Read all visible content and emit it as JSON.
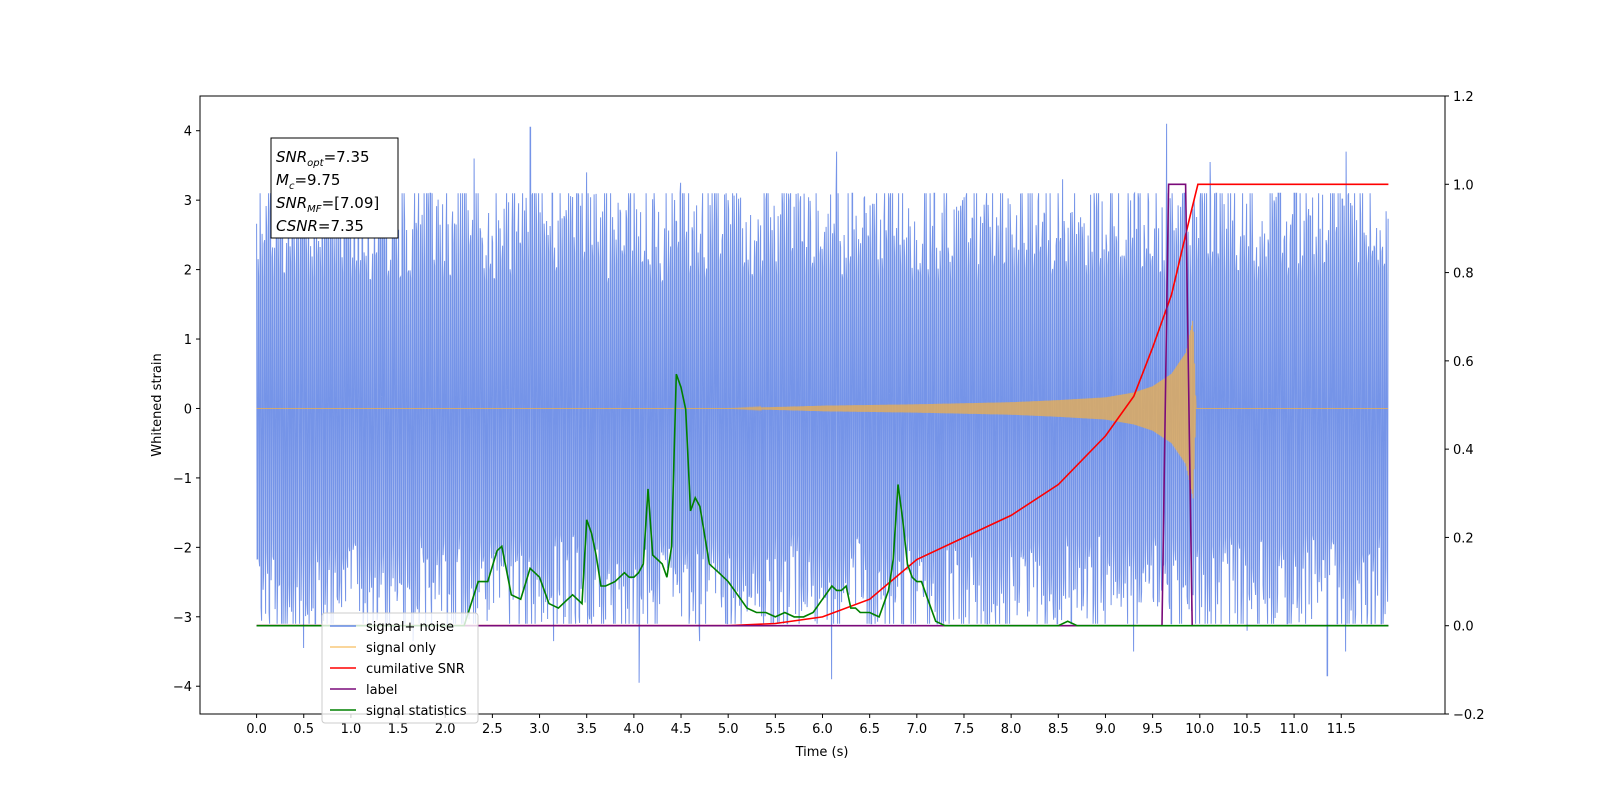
{
  "chart_data": {
    "type": "line",
    "title": "",
    "xlabel": "Time (s)",
    "ylabel": "Whitened strain",
    "xlim": [
      -0.6,
      12.6
    ],
    "ylim": [
      -4.4,
      4.5
    ],
    "ylim_right": [
      -0.2,
      1.2
    ],
    "x_ticks": [
      0.0,
      0.5,
      1.0,
      1.5,
      2.0,
      2.5,
      3.0,
      3.5,
      4.0,
      4.5,
      5.0,
      5.5,
      6.0,
      6.5,
      7.0,
      7.5,
      8.0,
      8.5,
      9.0,
      9.5,
      10.0,
      10.5,
      11.0,
      11.5
    ],
    "x_tick_labels": [
      "0.0",
      "0.5",
      "1.0",
      "1.5",
      "2.0",
      "2.5",
      "3.0",
      "3.5",
      "4.0",
      "4.5",
      "5.0",
      "5.5",
      "6.0",
      "6.5",
      "7.0",
      "7.5",
      "8.0",
      "8.5",
      "9.0",
      "9.5",
      "10.0",
      "10.5",
      "11.0",
      "11.5"
    ],
    "y_ticks": [
      -4,
      -3,
      -2,
      -1,
      0,
      1,
      2,
      3,
      4
    ],
    "y_tick_labels": [
      "−4",
      "−3",
      "−2",
      "−1",
      "0",
      "1",
      "2",
      "3",
      "4"
    ],
    "y_right_ticks": [
      -0.2,
      0.0,
      0.2,
      0.4,
      0.6,
      0.8,
      1.0,
      1.2
    ],
    "y_right_tick_labels": [
      "−0.2",
      "0.0",
      "0.2",
      "0.4",
      "0.6",
      "0.8",
      "1.0",
      "1.2"
    ],
    "grid": false,
    "legend_position": "lower-left",
    "noise": {
      "x_range": [
        0.0,
        12.0
      ],
      "typical_amplitude": 1.9,
      "peak_spikes": [
        {
          "x": 0.25,
          "y": 2.5
        },
        {
          "x": 0.5,
          "y": -3.45
        },
        {
          "x": 1.45,
          "y": 3.55
        },
        {
          "x": 1.65,
          "y": -3.35
        },
        {
          "x": 2.3,
          "y": 3.6
        },
        {
          "x": 2.9,
          "y": 4.05
        },
        {
          "x": 3.15,
          "y": -3.35
        },
        {
          "x": 3.5,
          "y": 3.4
        },
        {
          "x": 4.05,
          "y": -3.95
        },
        {
          "x": 4.5,
          "y": 3.25
        },
        {
          "x": 4.7,
          "y": -3.35
        },
        {
          "x": 6.1,
          "y": -3.9
        },
        {
          "x": 6.15,
          "y": 3.7
        },
        {
          "x": 8.55,
          "y": 3.3
        },
        {
          "x": 9.3,
          "y": -3.5
        },
        {
          "x": 9.65,
          "y": 4.1
        },
        {
          "x": 10.1,
          "y": 3.55
        },
        {
          "x": 10.5,
          "y": -3.2
        },
        {
          "x": 11.35,
          "y": -3.85
        },
        {
          "x": 11.55,
          "y": 3.7
        },
        {
          "x": 11.55,
          "y": -3.5
        }
      ]
    },
    "signal": {
      "x_range": [
        0.0,
        12.0
      ],
      "envelope": [
        {
          "x": 0.0,
          "y": 0.0
        },
        {
          "x": 5.0,
          "y": 0.0
        },
        {
          "x": 6.0,
          "y": 0.04
        },
        {
          "x": 7.0,
          "y": 0.06
        },
        {
          "x": 8.0,
          "y": 0.09
        },
        {
          "x": 8.5,
          "y": 0.12
        },
        {
          "x": 9.0,
          "y": 0.16
        },
        {
          "x": 9.3,
          "y": 0.23
        },
        {
          "x": 9.5,
          "y": 0.32
        },
        {
          "x": 9.7,
          "y": 0.5
        },
        {
          "x": 9.85,
          "y": 0.8
        },
        {
          "x": 9.93,
          "y": 1.3
        },
        {
          "x": 9.96,
          "y": 0.0
        },
        {
          "x": 12.0,
          "y": 0.0
        }
      ]
    },
    "series": [
      {
        "name": "signal+ noise",
        "axis": "left",
        "color": "#6688e6",
        "x": [],
        "y": []
      },
      {
        "name": "signal only",
        "axis": "left",
        "color": "#f5b041",
        "x": [],
        "y": []
      },
      {
        "name": "cumilative SNR",
        "axis": "right",
        "color": "#ff0000",
        "x": [
          0.0,
          5.0,
          5.5,
          6.0,
          6.5,
          7.0,
          7.5,
          8.0,
          8.5,
          9.0,
          9.3,
          9.5,
          9.7,
          9.9,
          9.98,
          12.0
        ],
        "y": [
          0.0,
          0.0,
          0.005,
          0.02,
          0.06,
          0.15,
          0.2,
          0.25,
          0.32,
          0.43,
          0.52,
          0.63,
          0.75,
          0.93,
          1.0,
          1.0
        ]
      },
      {
        "name": "label",
        "axis": "right",
        "color": "#7a0a7a",
        "x": [
          0.0,
          9.6,
          9.67,
          9.85,
          9.92,
          12.0
        ],
        "y": [
          0.0,
          0.0,
          1.0,
          1.0,
          0.0,
          0.0
        ]
      },
      {
        "name": "signal statistics",
        "axis": "right",
        "color": "#008000",
        "x": [
          0.0,
          2.2,
          2.35,
          2.45,
          2.55,
          2.6,
          2.7,
          2.8,
          2.9,
          3.0,
          3.1,
          3.2,
          3.3,
          3.35,
          3.45,
          3.5,
          3.55,
          3.6,
          3.65,
          3.7,
          3.8,
          3.9,
          3.95,
          4.0,
          4.05,
          4.1,
          4.15,
          4.2,
          4.25,
          4.3,
          4.35,
          4.4,
          4.45,
          4.5,
          4.55,
          4.6,
          4.65,
          4.7,
          4.8,
          4.9,
          5.0,
          5.1,
          5.2,
          5.3,
          5.4,
          5.5,
          5.6,
          5.7,
          5.8,
          5.9,
          6.0,
          6.1,
          6.15,
          6.2,
          6.25,
          6.3,
          6.35,
          6.4,
          6.5,
          6.6,
          6.7,
          6.75,
          6.8,
          6.85,
          6.9,
          6.95,
          7.0,
          7.05,
          7.1,
          7.2,
          7.3,
          7.5,
          8.5,
          8.6,
          8.7,
          9.5,
          12.0
        ],
        "y": [
          0.0,
          0.0,
          0.1,
          0.1,
          0.17,
          0.18,
          0.07,
          0.06,
          0.13,
          0.11,
          0.05,
          0.04,
          0.06,
          0.07,
          0.05,
          0.24,
          0.21,
          0.16,
          0.09,
          0.09,
          0.1,
          0.12,
          0.11,
          0.11,
          0.12,
          0.14,
          0.31,
          0.16,
          0.15,
          0.14,
          0.11,
          0.18,
          0.57,
          0.54,
          0.49,
          0.26,
          0.29,
          0.27,
          0.14,
          0.12,
          0.1,
          0.07,
          0.04,
          0.03,
          0.03,
          0.02,
          0.03,
          0.02,
          0.02,
          0.03,
          0.06,
          0.09,
          0.08,
          0.08,
          0.09,
          0.04,
          0.04,
          0.03,
          0.03,
          0.02,
          0.08,
          0.15,
          0.32,
          0.24,
          0.14,
          0.11,
          0.1,
          0.1,
          0.07,
          0.01,
          0.0,
          0.0,
          0.0,
          0.01,
          0.0,
          0.0,
          0.0
        ]
      }
    ],
    "annotation": {
      "lines": [
        {
          "main": "SNR",
          "sub": "opt",
          "rest": "=7.35"
        },
        {
          "main": "M",
          "sub": "c",
          "rest": "=9.75"
        },
        {
          "main": "SNR",
          "sub": "MF",
          "rest": "=[7.09]"
        },
        {
          "main": "CSNR",
          "sub": "",
          "rest": "=7.35"
        }
      ]
    }
  }
}
